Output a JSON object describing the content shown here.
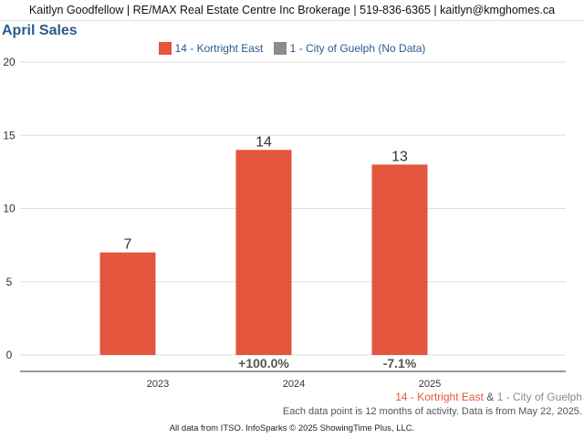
{
  "header": {
    "text": "Kaitlyn Goodfellow | RE/MAX Real Estate Centre Inc Brokerage | 519-836-6365 | kaitlyn@kmghomes.ca"
  },
  "colors": {
    "primary": "#e4553d",
    "secondary": "#8c8c8c",
    "title": "#2d5a8a",
    "grid": "#dddddd",
    "axis": "#333333"
  },
  "legend": {
    "items": [
      {
        "label": "14 - Kortright East",
        "color": "#e4553d"
      },
      {
        "label": "1 - City of Guelph (No Data)",
        "color": "#8c8c8c"
      }
    ]
  },
  "chart_data": {
    "type": "bar",
    "title": "April Sales",
    "categories": [
      "2023",
      "2024",
      "2025"
    ],
    "series": [
      {
        "name": "14 - Kortright East",
        "values": [
          7,
          14,
          13
        ]
      },
      {
        "name": "1 - City of Guelph (No Data)",
        "values": [
          null,
          null,
          null
        ]
      }
    ],
    "data_labels": [
      "7",
      "14",
      "13"
    ],
    "change_labels": [
      "",
      "+100.0%",
      "-7.1%"
    ],
    "yticks": [
      "0",
      "5",
      "10",
      "15",
      "20"
    ],
    "ylim": [
      0,
      20
    ],
    "xlabel": "",
    "ylabel": "",
    "grid": true,
    "legend_position": "top"
  },
  "footer": {
    "series_primary": "14 - Kortright East",
    "series_joiner": "&",
    "series_secondary": "1 - City of Guelph",
    "note": "Each data point is 12 months of activity. Data is from May 22, 2025.",
    "source": "All data from ITSO. InfoSparks © 2025 ShowingTime Plus, LLC."
  }
}
